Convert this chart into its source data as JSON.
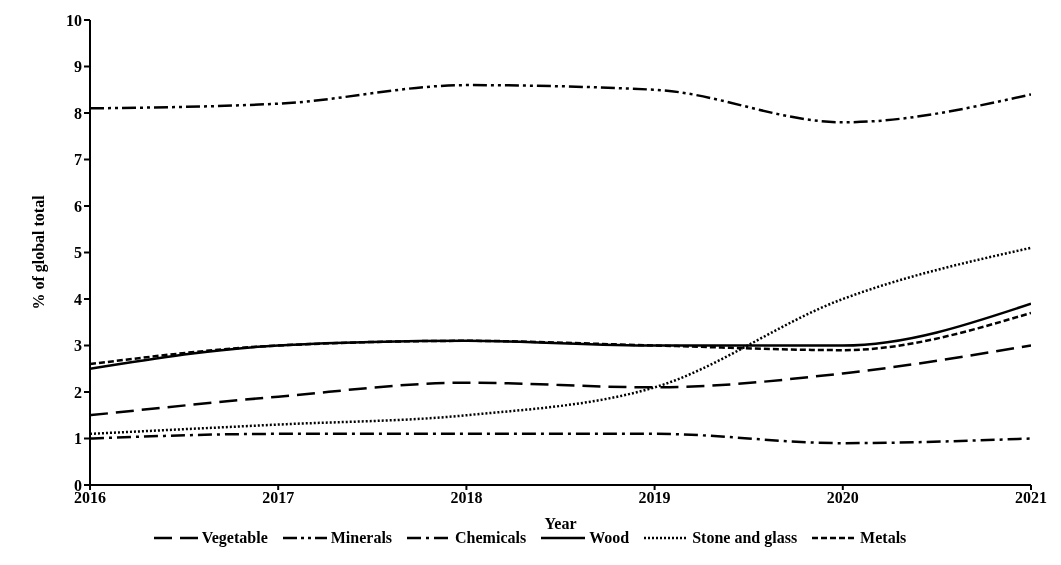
{
  "chart_data": {
    "type": "line",
    "xlabel": "Year",
    "ylabel": "% of global total",
    "x": [
      2016,
      2017,
      2018,
      2019,
      2020,
      2021
    ],
    "xlim": [
      2016,
      2021
    ],
    "xticks": [
      2016,
      2017,
      2018,
      2019,
      2020,
      2021
    ],
    "ylim": [
      0,
      10
    ],
    "yticks": [
      0,
      1,
      2,
      3,
      4,
      5,
      6,
      7,
      8,
      9,
      10
    ],
    "grid": false,
    "legend": "bottom",
    "marker": "none",
    "series": [
      {
        "name": "Vegetable",
        "color": "#000000",
        "line_style": "longdash",
        "values": [
          1.5,
          1.9,
          2.2,
          2.1,
          2.4,
          3.0
        ]
      },
      {
        "name": "Minerals",
        "color": "#000000",
        "line_style": "dashdotdot",
        "values": [
          8.1,
          8.2,
          8.6,
          8.5,
          7.8,
          8.4
        ]
      },
      {
        "name": "Chemicals",
        "color": "#000000",
        "line_style": "dashdot",
        "values": [
          1.0,
          1.1,
          1.1,
          1.1,
          0.9,
          1.0
        ]
      },
      {
        "name": "Wood",
        "color": "#000000",
        "line_style": "solid",
        "values": [
          2.5,
          3.0,
          3.1,
          3.0,
          3.0,
          3.9
        ]
      },
      {
        "name": "Stone and glass",
        "color": "#000000",
        "line_style": "dotted",
        "values": [
          1.1,
          1.3,
          1.5,
          2.1,
          4.0,
          5.1
        ]
      },
      {
        "name": "Metals",
        "color": "#000000",
        "line_style": "dashed",
        "values": [
          2.6,
          3.0,
          3.1,
          3.0,
          2.9,
          3.7
        ]
      }
    ]
  }
}
